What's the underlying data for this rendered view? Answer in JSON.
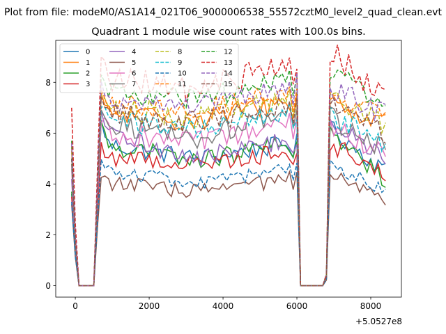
{
  "window": {
    "suptitle": "Plot from file: modeM0/AS1A14_021T06_9000006538_55572cztM0_level2_quad_clean.evt"
  },
  "chart_data": {
    "type": "line",
    "title": "Quadrant 1 module wise count rates with 100.0s bins.",
    "xlabel": "",
    "ylabel": "",
    "x_offset_label": "+5.0527e8",
    "xlim": [
      -530,
      8830
    ],
    "ylim": [
      -0.45,
      9.65
    ],
    "xticks": [
      0,
      2000,
      4000,
      6000,
      8000
    ],
    "xtick_labels": [
      "0",
      "2000",
      "4000",
      "6000",
      "8000"
    ],
    "yticks": [
      0,
      2,
      4,
      6,
      8
    ],
    "ytick_labels": [
      "0",
      "2",
      "4",
      "6",
      "8"
    ],
    "grid": false,
    "legend_position": "top-left",
    "time_structure": {
      "bin_seconds": 100,
      "first_visible_bin": -100,
      "last_visible_bin": 8400,
      "gaps": [
        [
          100,
          500
        ],
        [
          6100,
          6700
        ]
      ]
    },
    "series": [
      {
        "name": "0",
        "color": "#1f77b4",
        "dash": "solid",
        "first": 3.6,
        "peak": 6.8,
        "level_start": 5.6,
        "level_mid": 5.0,
        "level_end": 5.6,
        "orbit2_start": 6.2,
        "orbit2_end": 4.5,
        "noise": 0.25
      },
      {
        "name": "1",
        "color": "#ff7f0e",
        "dash": "solid",
        "first": 5.3,
        "peak": 7.7,
        "level_start": 6.8,
        "level_mid": 6.5,
        "level_end": 7.3,
        "orbit2_start": 7.2,
        "orbit2_end": 6.3,
        "noise": 0.3
      },
      {
        "name": "2",
        "color": "#2ca02c",
        "dash": "solid",
        "first": 3.7,
        "peak": 6.6,
        "level_start": 5.6,
        "level_mid": 4.9,
        "level_end": 5.6,
        "orbit2_start": 5.9,
        "orbit2_end": 4.2,
        "noise": 0.25
      },
      {
        "name": "3",
        "color": "#d62728",
        "dash": "solid",
        "first": 3.5,
        "peak": 5.6,
        "level_start": 5.1,
        "level_mid": 4.8,
        "level_end": 5.3,
        "orbit2_start": 5.6,
        "orbit2_end": 4.4,
        "noise": 0.25
      },
      {
        "name": "4",
        "color": "#9467bd",
        "dash": "solid",
        "first": 4.2,
        "peak": 6.9,
        "level_start": 6.1,
        "level_mid": 5.0,
        "level_end": 5.8,
        "orbit2_start": 6.4,
        "orbit2_end": 5.0,
        "noise": 0.25
      },
      {
        "name": "5",
        "color": "#8c564b",
        "dash": "solid",
        "first": 3.2,
        "peak": 4.6,
        "level_start": 4.1,
        "level_mid": 3.7,
        "level_end": 4.2,
        "orbit2_start": 4.4,
        "orbit2_end": 3.3,
        "noise": 0.2
      },
      {
        "name": "6",
        "color": "#e377c2",
        "dash": "solid",
        "first": 4.6,
        "peak": 6.9,
        "level_start": 6.1,
        "level_mid": 5.6,
        "level_end": 6.4,
        "orbit2_start": 6.3,
        "orbit2_end": 5.2,
        "noise": 0.3
      },
      {
        "name": "7",
        "color": "#7f7f7f",
        "dash": "solid",
        "first": 4.8,
        "peak": 7.4,
        "level_start": 6.5,
        "level_mid": 5.8,
        "level_end": 6.9,
        "orbit2_start": 6.6,
        "orbit2_end": 5.4,
        "noise": 0.3
      },
      {
        "name": "8",
        "color": "#bcbd22",
        "dash": "dashed",
        "first": 5.4,
        "peak": 7.9,
        "level_start": 7.1,
        "level_mid": 6.6,
        "level_end": 7.4,
        "orbit2_start": 7.3,
        "orbit2_end": 6.4,
        "noise": 0.3
      },
      {
        "name": "9",
        "color": "#17becf",
        "dash": "dashed",
        "first": 5.0,
        "peak": 7.4,
        "level_start": 6.6,
        "level_mid": 6.1,
        "level_end": 6.9,
        "orbit2_start": 6.7,
        "orbit2_end": 5.5,
        "noise": 0.3
      },
      {
        "name": "10",
        "color": "#1f77b4",
        "dash": "dashed",
        "first": 3.3,
        "peak": 5.2,
        "level_start": 4.6,
        "level_mid": 4.0,
        "level_end": 4.6,
        "orbit2_start": 4.8,
        "orbit2_end": 3.7,
        "noise": 0.2
      },
      {
        "name": "11",
        "color": "#ff7f0e",
        "dash": "dashed",
        "first": 5.5,
        "peak": 8.0,
        "level_start": 7.2,
        "level_mid": 6.9,
        "level_end": 7.6,
        "orbit2_start": 7.6,
        "orbit2_end": 6.6,
        "noise": 0.3
      },
      {
        "name": "12",
        "color": "#2ca02c",
        "dash": "dashed",
        "first": 5.7,
        "peak": 8.6,
        "level_start": 7.6,
        "level_mid": 7.3,
        "level_end": 8.3,
        "orbit2_start": 8.5,
        "orbit2_end": 6.8,
        "noise": 0.3
      },
      {
        "name": "13",
        "color": "#d62728",
        "dash": "dashed",
        "first": 7.0,
        "peak": 9.3,
        "level_start": 8.2,
        "level_mid": 7.7,
        "level_end": 8.8,
        "orbit2_start": 9.3,
        "orbit2_end": 7.3,
        "noise": 0.35
      },
      {
        "name": "14",
        "color": "#9467bd",
        "dash": "dashed",
        "first": 5.6,
        "peak": 8.2,
        "level_start": 7.4,
        "level_mid": 7.0,
        "level_end": 7.9,
        "orbit2_start": 7.8,
        "orbit2_end": 6.7,
        "noise": 0.3
      },
      {
        "name": "15",
        "color": "#8c564b",
        "dash": "dashed",
        "first": 5.0,
        "peak": 7.5,
        "level_start": 6.8,
        "level_mid": 6.4,
        "level_end": 7.1,
        "orbit2_start": 7.1,
        "orbit2_end": 6.0,
        "noise": 0.3
      }
    ]
  }
}
